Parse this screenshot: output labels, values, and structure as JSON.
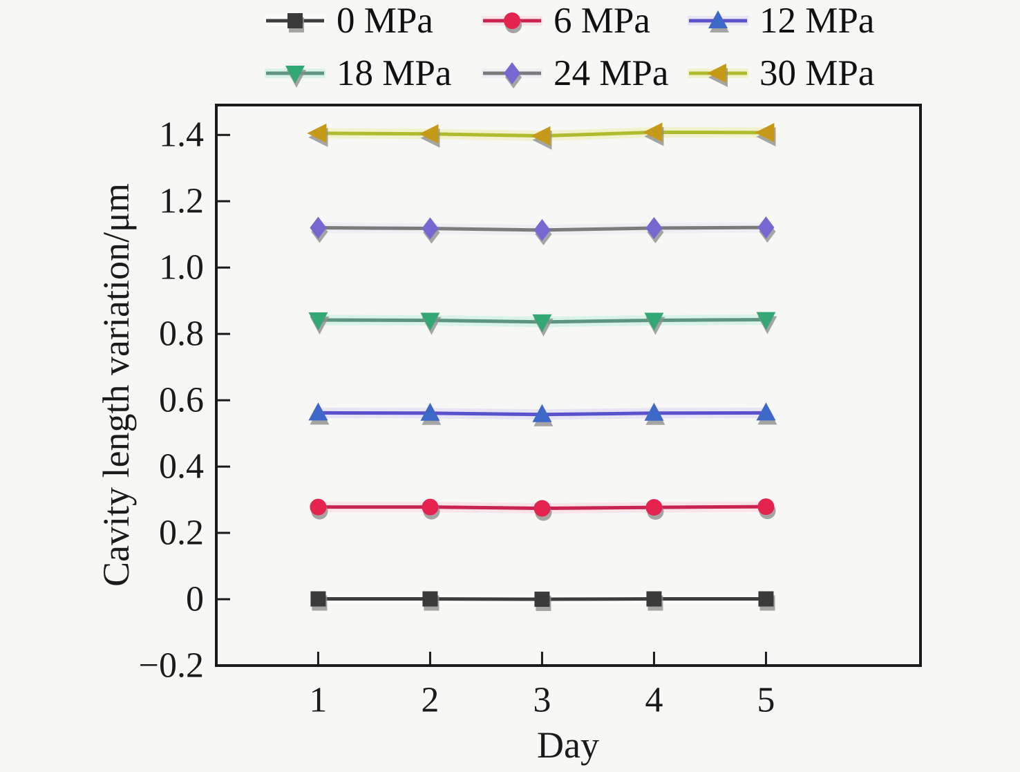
{
  "chart_data": {
    "type": "line",
    "title": "",
    "xlabel": "Day",
    "ylabel": "Cavity length variation/μm",
    "x": [
      1,
      2,
      3,
      4,
      5
    ],
    "xticks": [
      1,
      2,
      3,
      4,
      5
    ],
    "xtick_labels": [
      "1",
      "2",
      "3",
      "4",
      "5"
    ],
    "yticks": [
      -0.2,
      0,
      0.2,
      0.4,
      0.6,
      0.8,
      1.0,
      1.2,
      1.4
    ],
    "ytick_labels": [
      "−0.2",
      "0",
      "0.2",
      "0.4",
      "0.6",
      "0.8",
      "1.0",
      "1.2",
      "1.4"
    ],
    "xlim": [
      0.09,
      6.38
    ],
    "ylim": [
      -0.2,
      1.49
    ],
    "grid": false,
    "legend_position": "top-outside",
    "axis_color": "#1a1a1a",
    "background_color": "#f7f7f5",
    "series": [
      {
        "name": "0 MPa",
        "marker": "square",
        "line_color": "#3d3d3d",
        "marker_color": "#3a3a3a",
        "glow_color": "#ffffff",
        "values": [
          0.001,
          0.001,
          0.0,
          0.001,
          0.001
        ]
      },
      {
        "name": "6 MPa",
        "marker": "circle",
        "line_color": "#c9234f",
        "marker_color": "#e5234f",
        "glow_color": "#ffd2dd",
        "values": [
          0.278,
          0.278,
          0.274,
          0.277,
          0.279
        ]
      },
      {
        "name": "12 MPa",
        "marker": "triangle-up",
        "line_color": "#5a52cc",
        "marker_color": "#3e68c8",
        "glow_color": "#d8d4f5",
        "values": [
          0.562,
          0.561,
          0.557,
          0.561,
          0.562
        ]
      },
      {
        "name": "18 MPa",
        "marker": "triangle-down",
        "line_color": "#5e9482",
        "marker_color": "#33a874",
        "glow_color": "#bdf0dc",
        "values": [
          0.842,
          0.841,
          0.836,
          0.841,
          0.843
        ]
      },
      {
        "name": "24 MPa",
        "marker": "diamond",
        "line_color": "#7b7b7b",
        "marker_color": "#7568d0",
        "glow_color": "#e7e6f2",
        "values": [
          1.12,
          1.118,
          1.113,
          1.119,
          1.121
        ]
      },
      {
        "name": "30 MPa",
        "marker": "triangle-left",
        "line_color": "#b0bc30",
        "marker_color": "#c49a18",
        "glow_color": "#eef0a8",
        "values": [
          1.405,
          1.403,
          1.397,
          1.408,
          1.407
        ]
      }
    ]
  }
}
